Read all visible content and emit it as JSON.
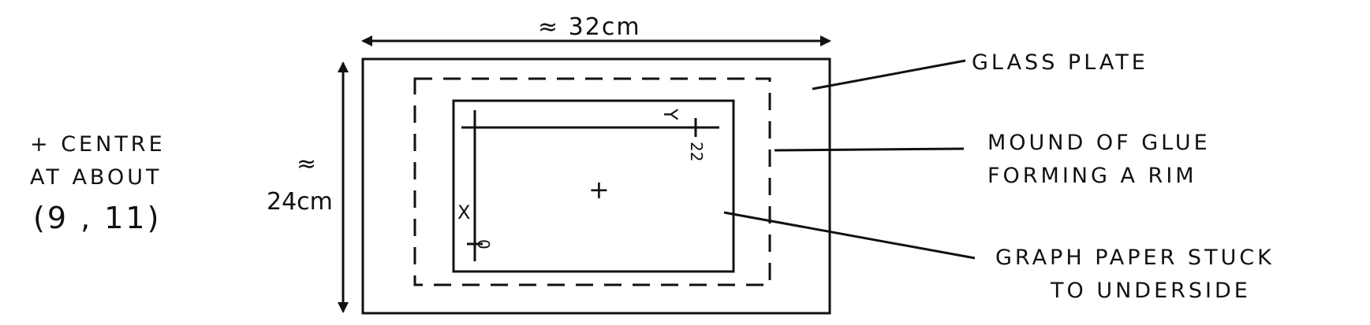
{
  "labels": {
    "centre_line1": "+ CENTRE",
    "centre_line2": "AT ABOUT",
    "centre_line3": "(9 , 11)",
    "width_dim": "≈ 32cm",
    "height_approx": "≈",
    "height_dim": "24cm",
    "glass_plate": "GLASS PLATE",
    "glue_line1": "MOUND OF  GLUE",
    "glue_line2": "FORMING  A  RIM",
    "paper_line1": "GRAPH  PAPER  STUCK",
    "paper_line2": "TO  UNDERSIDE",
    "axis_y": "Y",
    "axis_x": "X",
    "tick_22": "22",
    "tick_0": "0",
    "centre_mark": "+"
  },
  "colors": {
    "ink": "#111111",
    "paper": "#ffffff"
  }
}
